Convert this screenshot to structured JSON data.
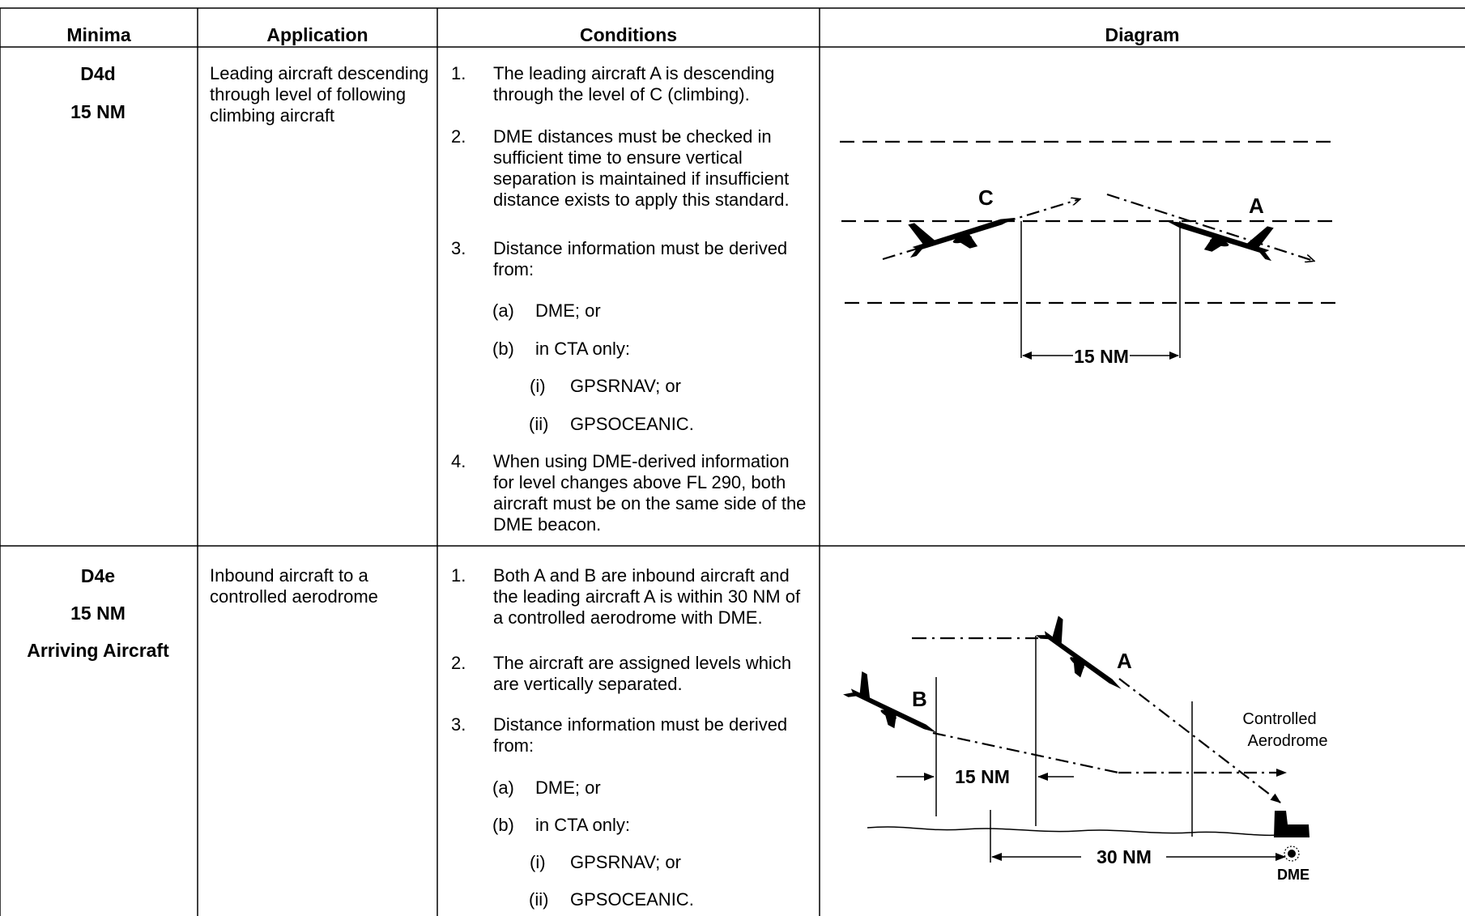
{
  "headers": {
    "minima": "Minima",
    "application": "Application",
    "conditions": "Conditions",
    "diagram": "Diagram"
  },
  "rows": [
    {
      "minima": [
        "D4d",
        "15 NM"
      ],
      "application": "Leading aircraft descending through level of following climbing aircraft",
      "conditions": {
        "c1": {
          "n": "1.",
          "t": "The leading aircraft A is descending through the level of C (climbing)."
        },
        "c2": {
          "n": "2.",
          "t": "DME distances must be checked in sufficient time to ensure vertical separation is maintained if insufficient distance exists to apply this standard."
        },
        "c3": {
          "n": "3.",
          "t": "Distance information must be derived from:"
        },
        "a": {
          "n": "(a)",
          "t": "DME; or"
        },
        "b": {
          "n": "(b)",
          "t": "in CTA only:"
        },
        "i": {
          "n": "(i)",
          "t": "GPSRNAV; or"
        },
        "ii": {
          "n": "(ii)",
          "t": "GPSOCEANIC."
        },
        "c4": {
          "n": "4.",
          "t": "When using DME-derived information for level changes above FL 290, both aircraft must be on the same side of the DME beacon."
        }
      },
      "diagram": {
        "label_c": "C",
        "label_a": "A",
        "distance": "15 NM"
      }
    },
    {
      "minima": [
        "D4e",
        "15 NM",
        "Arriving Aircraft"
      ],
      "application": "Inbound aircraft to a controlled aerodrome",
      "conditions": {
        "c1": {
          "n": "1.",
          "t": "Both A and B are inbound aircraft and the leading aircraft A is within 30 NM of a controlled aerodrome with DME."
        },
        "c2": {
          "n": "2.",
          "t": "The aircraft are assigned levels which are vertically separated."
        },
        "c3": {
          "n": "3.",
          "t": "Distance information must be derived from:"
        },
        "a": {
          "n": "(a)",
          "t": "DME; or"
        },
        "b": {
          "n": "(b)",
          "t": "in CTA only:"
        },
        "i": {
          "n": "(i)",
          "t": "GPSRNAV; or"
        },
        "ii": {
          "n": "(ii)",
          "t": "GPSOCEANIC."
        }
      },
      "diagram": {
        "label_b": "B",
        "label_a": "A",
        "distance_15": "15 NM",
        "distance_30": "30 NM",
        "aerodrome_line1": "Controlled",
        "aerodrome_line2": "Aerodrome",
        "dme": "DME"
      }
    }
  ]
}
